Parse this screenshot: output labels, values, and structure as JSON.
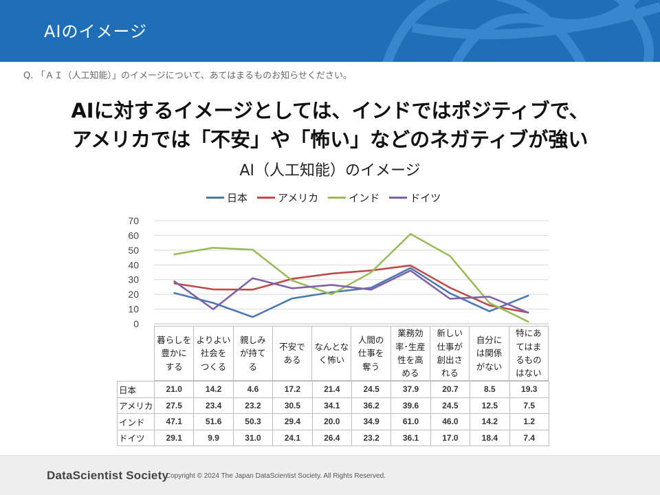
{
  "header": {
    "title": "AIのイメージ"
  },
  "question": "Q. 「ＡＩ（人工知能）」のイメージについて、あてはまるものお知らせください。",
  "headline": {
    "line1": "AIに対するイメージとしては、インドではポジティブで、",
    "line2": "アメリカでは「不安」や「怖い」などのネガティブが強い"
  },
  "footer": {
    "logo": "DataScientist Society",
    "copyright": "Copyright © 2024 The Japan DataScientist Society. All Rights Reserved."
  },
  "colors": {
    "header_bg": "#1f6fb8"
  },
  "chart_data": {
    "type": "line",
    "title": "AI（人工知能）のイメージ",
    "categories": [
      [
        "暮らしを",
        "豊かに",
        "する"
      ],
      [
        "よりよい",
        "社会を",
        "つくる"
      ],
      [
        "親しみ",
        "が持て",
        "る"
      ],
      [
        "不安で",
        "ある"
      ],
      [
        "なんとな",
        "く怖い"
      ],
      [
        "人間の",
        "仕事を",
        "奪う"
      ],
      [
        "業務効",
        "率･生産",
        "性を高",
        "める"
      ],
      [
        "新しい",
        "仕事が",
        "創出さ",
        "れる"
      ],
      [
        "自分に",
        "は関係",
        "がない"
      ],
      [
        "特にあ",
        "てはま",
        "るもの",
        "はない"
      ]
    ],
    "yticks": [
      "70",
      "60",
      "50",
      "40",
      "30",
      "20",
      "10",
      "0"
    ],
    "ylim": [
      0,
      70
    ],
    "grid": true,
    "legend_position": "top",
    "series": [
      {
        "name": "日本",
        "color": "#4a78b3",
        "values": [
          21.0,
          14.2,
          4.6,
          17.2,
          21.4,
          24.5,
          37.9,
          20.7,
          8.5,
          19.3
        ],
        "labels": [
          "21.0",
          "14.2",
          "4.6",
          "17.2",
          "21.4",
          "24.5",
          "37.9",
          "20.7",
          "8.5",
          "19.3"
        ]
      },
      {
        "name": "アメリカ",
        "color": "#bf4b48",
        "values": [
          27.5,
          23.4,
          23.2,
          30.5,
          34.1,
          36.2,
          39.6,
          24.5,
          12.5,
          7.5
        ],
        "labels": [
          "27.5",
          "23.4",
          "23.2",
          "30.5",
          "34.1",
          "36.2",
          "39.6",
          "24.5",
          "12.5",
          "7.5"
        ]
      },
      {
        "name": "インド",
        "color": "#9bbb59",
        "values": [
          47.1,
          51.6,
          50.3,
          29.4,
          20.0,
          34.9,
          61.0,
          46.0,
          14.2,
          1.2
        ],
        "labels": [
          "47.1",
          "51.6",
          "50.3",
          "29.4",
          "20.0",
          "34.9",
          "61.0",
          "46.0",
          "14.2",
          "1.2"
        ]
      },
      {
        "name": "ドイツ",
        "color": "#7f62a8",
        "values": [
          29.1,
          9.9,
          31.0,
          24.1,
          26.4,
          23.2,
          36.1,
          17.0,
          18.4,
          7.4
        ],
        "labels": [
          "29.1",
          "9.9",
          "31.0",
          "24.1",
          "26.4",
          "23.2",
          "36.1",
          "17.0",
          "18.4",
          "7.4"
        ]
      }
    ]
  }
}
